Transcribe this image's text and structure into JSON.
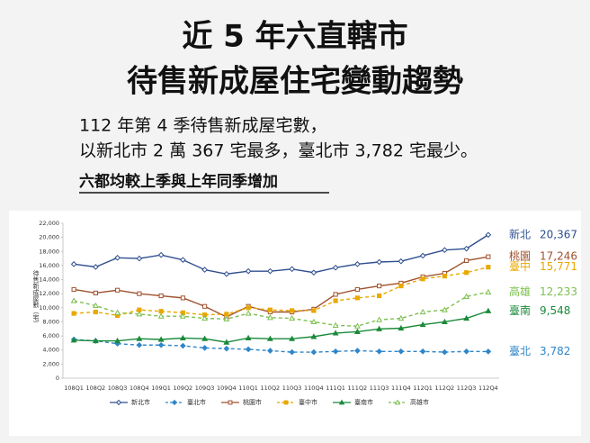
{
  "chart_data": {
    "type": "line",
    "title": [
      "近 5 年六直轄市",
      "待售新成屋住宅變動趨勢"
    ],
    "subtitle": [
      "112 年第 4 季待售新成屋宅數，",
      "以新北市 2 萬 367 宅最多，臺北市 3,782 宅最少。"
    ],
    "headline": "六都均較上季與上年同季增加",
    "y_label": "待售新成屋數（宅）",
    "categories": [
      "108Q1",
      "108Q2",
      "108Q3",
      "108Q4",
      "109Q1",
      "109Q2",
      "109Q3",
      "109Q4",
      "110Q1",
      "110Q2",
      "110Q3",
      "110Q4",
      "111Q1",
      "111Q2",
      "111Q3",
      "111Q4",
      "112Q1",
      "112Q2",
      "112Q3",
      "112Q4"
    ],
    "ylim": [
      0,
      22000
    ],
    "yticks": [
      0,
      {
        "value": 2000,
        "label": "2,000"
      },
      {
        "value": 4000,
        "label": "4,000"
      },
      {
        "value": 6000,
        "label": "6,000"
      },
      {
        "value": 8000,
        "label": "8,000"
      },
      {
        "value": 10000,
        "label": "10,000"
      },
      {
        "value": 12000,
        "label": "12,000"
      },
      {
        "value": 14000,
        "label": "14,000"
      },
      {
        "value": 16000,
        "label": "16,000"
      },
      {
        "value": 18000,
        "label": "18,000"
      },
      {
        "value": 20000,
        "label": "20,000"
      },
      {
        "value": 22000,
        "label": "22,000"
      }
    ],
    "grid": false,
    "legend": "bottom",
    "series": [
      {
        "name": "新北市",
        "label": "新北",
        "color": "#2f4f8f",
        "marker": "diamond",
        "filled": false,
        "dashed": false,
        "values": [
          16200,
          15800,
          17100,
          17000,
          17500,
          16800,
          15400,
          14800,
          15200,
          15200,
          15500,
          15000,
          15700,
          16200,
          16500,
          16600,
          17400,
          18200,
          18400,
          20367
        ],
        "value_labels": [
          null,
          null,
          null,
          null,
          null,
          null,
          null,
          null,
          null,
          null,
          null,
          null,
          null,
          null,
          null,
          null,
          null,
          null,
          null,
          "20,367"
        ]
      },
      {
        "name": "臺北市",
        "label": "臺北",
        "color": "#2e86c8",
        "marker": "diamond",
        "filled": true,
        "dashed": true,
        "values": [
          5500,
          5300,
          4900,
          4700,
          4700,
          4600,
          4300,
          4200,
          4100,
          3900,
          3700,
          3700,
          3800,
          3900,
          3800,
          3800,
          3800,
          3700,
          3800,
          3782
        ],
        "value_labels": [
          null,
          null,
          null,
          null,
          null,
          null,
          null,
          null,
          null,
          null,
          null,
          null,
          null,
          null,
          null,
          null,
          null,
          null,
          null,
          "3,782"
        ]
      },
      {
        "name": "桃園市",
        "label": "桃園",
        "color": "#a0522d",
        "marker": "square",
        "filled": false,
        "dashed": false,
        "values": [
          12600,
          12100,
          12500,
          12000,
          11700,
          11400,
          10200,
          8700,
          10200,
          9400,
          9400,
          9800,
          11900,
          12600,
          13100,
          13500,
          14400,
          14900,
          16700,
          17246
        ],
        "value_labels": [
          null,
          null,
          null,
          null,
          null,
          null,
          null,
          null,
          null,
          null,
          null,
          null,
          null,
          null,
          null,
          null,
          null,
          null,
          null,
          "17,246"
        ]
      },
      {
        "name": "臺中市",
        "label": "臺中",
        "color": "#e8a800",
        "marker": "square",
        "filled": true,
        "dashed": true,
        "values": [
          9200,
          9400,
          8900,
          9700,
          9500,
          9300,
          9000,
          9100,
          10000,
          9700,
          9600,
          9600,
          11000,
          11400,
          11700,
          13100,
          14100,
          14500,
          15000,
          15771
        ],
        "value_labels": [
          null,
          null,
          null,
          null,
          null,
          null,
          null,
          null,
          null,
          null,
          null,
          null,
          null,
          null,
          null,
          null,
          null,
          null,
          null,
          "15,771"
        ]
      },
      {
        "name": "臺南市",
        "label": "臺南",
        "color": "#1a8a3a",
        "marker": "triangle",
        "filled": true,
        "dashed": false,
        "values": [
          5400,
          5300,
          5300,
          5600,
          5500,
          5700,
          5600,
          5100,
          5700,
          5600,
          5600,
          5900,
          6400,
          6600,
          7000,
          7100,
          7600,
          8000,
          8500,
          9548
        ],
        "value_labels": [
          null,
          null,
          null,
          null,
          null,
          null,
          null,
          null,
          null,
          null,
          null,
          null,
          null,
          null,
          null,
          null,
          null,
          null,
          null,
          "9,548"
        ]
      },
      {
        "name": "高雄市",
        "label": "高雄",
        "color": "#7cbf4f",
        "marker": "triangle",
        "filled": false,
        "dashed": true,
        "values": [
          11000,
          10300,
          9300,
          9100,
          8800,
          8800,
          8500,
          8400,
          9200,
          8600,
          8500,
          8000,
          7500,
          7400,
          8300,
          8500,
          9400,
          9700,
          11600,
          12233
        ],
        "value_labels": [
          null,
          null,
          null,
          null,
          null,
          null,
          null,
          null,
          null,
          null,
          null,
          null,
          null,
          null,
          null,
          null,
          null,
          null,
          null,
          "12,233"
        ]
      }
    ]
  }
}
